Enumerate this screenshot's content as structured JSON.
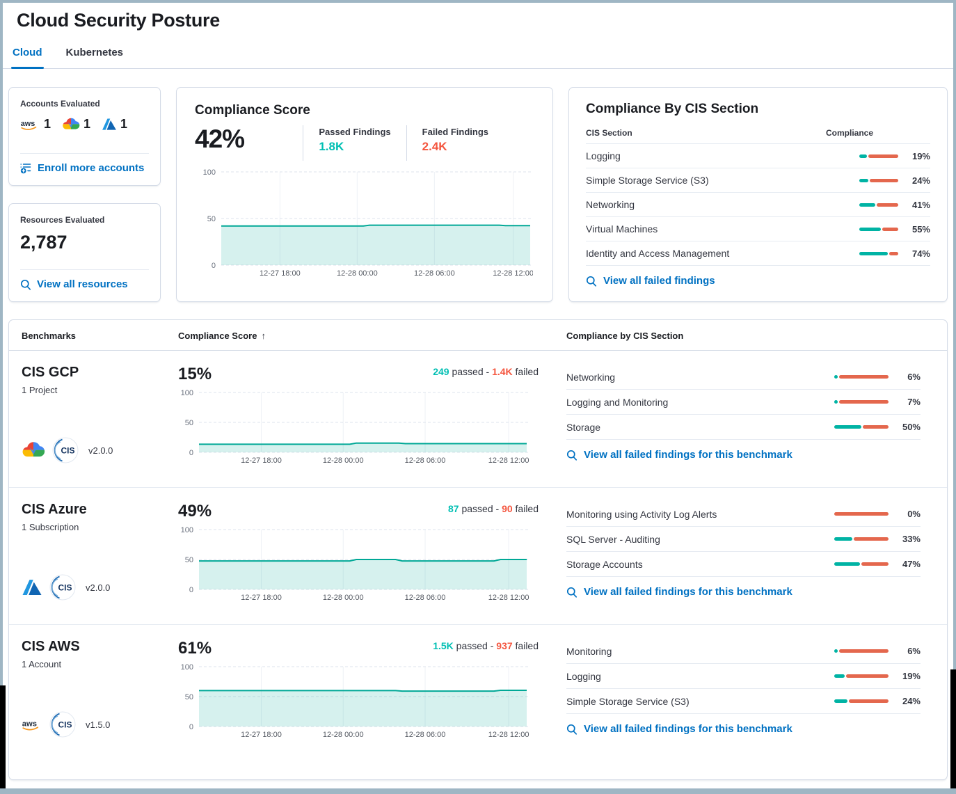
{
  "page": {
    "title": "Cloud Security Posture"
  },
  "tabs": [
    {
      "label": "Cloud",
      "active": true
    },
    {
      "label": "Kubernetes",
      "active": false
    }
  ],
  "accounts_card": {
    "title": "Accounts Evaluated",
    "providers": [
      {
        "name": "aws",
        "count": "1"
      },
      {
        "name": "gcp",
        "count": "1"
      },
      {
        "name": "azure",
        "count": "1"
      }
    ],
    "link": "Enroll more accounts"
  },
  "resources_card": {
    "title": "Resources Evaluated",
    "count": "2,787",
    "link": "View all resources"
  },
  "score_card": {
    "title": "Compliance Score",
    "score": "42%",
    "passed_label": "Passed Findings",
    "passed_value": "1.8K",
    "failed_label": "Failed Findings",
    "failed_value": "2.4K",
    "chart": {
      "type": "area",
      "ylim": [
        0,
        100
      ],
      "yticks": [
        "100",
        "50",
        "0"
      ],
      "xticks": [
        "12-27 18:00",
        "12-28 00:00",
        "12-28 06:00",
        "12-28 12:00"
      ],
      "points": [
        [
          0,
          42
        ],
        [
          0.46,
          42
        ],
        [
          0.48,
          42.8
        ],
        [
          0.9,
          42.8
        ],
        [
          0.92,
          42.4
        ],
        [
          1,
          42.4
        ]
      ]
    }
  },
  "cis_card": {
    "title": "Compliance By CIS Section",
    "col_section": "CIS Section",
    "col_compliance": "Compliance",
    "rows": [
      {
        "name": "Logging",
        "pct": 19
      },
      {
        "name": "Simple Storage Service (S3)",
        "pct": 24
      },
      {
        "name": "Networking",
        "pct": 41
      },
      {
        "name": "Virtual Machines",
        "pct": 55
      },
      {
        "name": "Identity and Access Management",
        "pct": 74
      }
    ],
    "link": "View all failed findings"
  },
  "benchmarks": {
    "col_benchmarks": "Benchmarks",
    "col_score": "Compliance Score",
    "sort_arrow": "↑",
    "col_sections": "Compliance by CIS Section",
    "link_label": "View all failed findings for this benchmark",
    "rows": [
      {
        "name": "CIS GCP",
        "subtitle": "1 Project",
        "provider": "gcp",
        "version": "v2.0.0",
        "score": "15%",
        "passed": "249",
        "passed_word": "passed",
        "sep": "-",
        "failed": "1.4K",
        "failed_word": "failed",
        "sections": [
          {
            "name": "Networking",
            "pct": 6
          },
          {
            "name": "Logging and Monitoring",
            "pct": 7
          },
          {
            "name": "Storage",
            "pct": 50
          }
        ],
        "chart": {
          "type": "area",
          "ylim": [
            0,
            100
          ],
          "yticks": [
            "100",
            "50",
            "0"
          ],
          "xticks": [
            "12-27 18:00",
            "12-28 00:00",
            "12-28 06:00",
            "12-28 12:00"
          ],
          "points": [
            [
              0,
              13.5
            ],
            [
              0.46,
              13.5
            ],
            [
              0.48,
              15.5
            ],
            [
              0.61,
              15.5
            ],
            [
              0.63,
              14.5
            ],
            [
              1,
              14.5
            ]
          ]
        }
      },
      {
        "name": "CIS Azure",
        "subtitle": "1 Subscription",
        "provider": "azure",
        "version": "v2.0.0",
        "score": "49%",
        "passed": "87",
        "passed_word": "passed",
        "sep": "-",
        "failed": "90",
        "failed_word": "failed",
        "sections": [
          {
            "name": "Monitoring using Activity Log Alerts",
            "pct": 0
          },
          {
            "name": "SQL Server - Auditing",
            "pct": 33
          },
          {
            "name": "Storage Accounts",
            "pct": 47
          }
        ],
        "chart": {
          "type": "area",
          "ylim": [
            0,
            100
          ],
          "yticks": [
            "100",
            "50",
            "0"
          ],
          "xticks": [
            "12-27 18:00",
            "12-28 00:00",
            "12-28 06:00",
            "12-28 12:00"
          ],
          "points": [
            [
              0,
              47.5
            ],
            [
              0.46,
              47.5
            ],
            [
              0.48,
              50
            ],
            [
              0.6,
              50
            ],
            [
              0.62,
              47.5
            ],
            [
              0.9,
              47.5
            ],
            [
              0.92,
              50
            ],
            [
              1,
              50
            ]
          ]
        }
      },
      {
        "name": "CIS AWS",
        "subtitle": "1 Account",
        "provider": "aws",
        "version": "v1.5.0",
        "score": "61%",
        "passed": "1.5K",
        "passed_word": "passed",
        "sep": "-",
        "failed": "937",
        "failed_word": "failed",
        "sections": [
          {
            "name": "Monitoring",
            "pct": 6
          },
          {
            "name": "Logging",
            "pct": 19
          },
          {
            "name": "Simple Storage Service (S3)",
            "pct": 24
          }
        ],
        "chart": {
          "type": "area",
          "ylim": [
            0,
            100
          ],
          "yticks": [
            "100",
            "50",
            "0"
          ],
          "xticks": [
            "12-27 18:00",
            "12-28 00:00",
            "12-28 06:00",
            "12-28 12:00"
          ],
          "points": [
            [
              0,
              60
            ],
            [
              0.6,
              60
            ],
            [
              0.62,
              59.2
            ],
            [
              0.9,
              59.2
            ],
            [
              0.92,
              60.5
            ],
            [
              1,
              60.5
            ]
          ]
        }
      }
    ]
  }
}
